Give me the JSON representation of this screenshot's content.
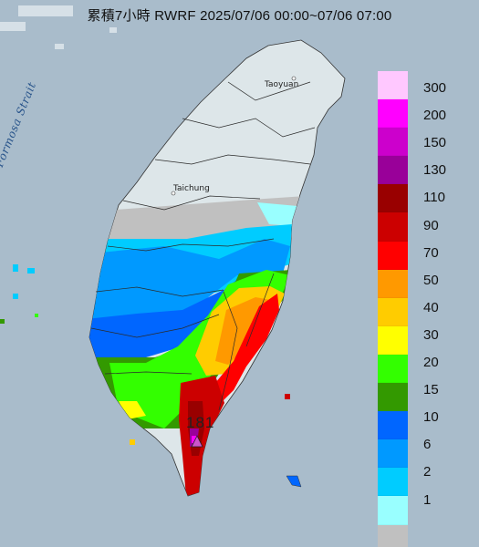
{
  "title": "累積7小時 RWRF 2025/07/06 00:00~07/06 07:00",
  "places": {
    "taoyuan": "Taoyuan",
    "taichung": "Taichung",
    "strait": "Formosa Strait"
  },
  "max_value_label": "181",
  "legend": {
    "labels": [
      "300",
      "200",
      "150",
      "130",
      "110",
      "90",
      "70",
      "50",
      "40",
      "30",
      "20",
      "15",
      "10",
      "6",
      "2",
      "1"
    ],
    "colors": [
      "#ffc8ff",
      "#ff00ff",
      "#cc00cc",
      "#990099",
      "#990000",
      "#cc0000",
      "#ff0000",
      "#ff9900",
      "#ffcc00",
      "#ffff00",
      "#33ff00",
      "#339900",
      "#0066ff",
      "#0099ff",
      "#00ccff",
      "#99ffff",
      "#c0c0c0"
    ]
  },
  "colors": {
    "sea": "#a9bccb",
    "land": "#dde6e9",
    "no_rain": "#c0c0c0"
  }
}
